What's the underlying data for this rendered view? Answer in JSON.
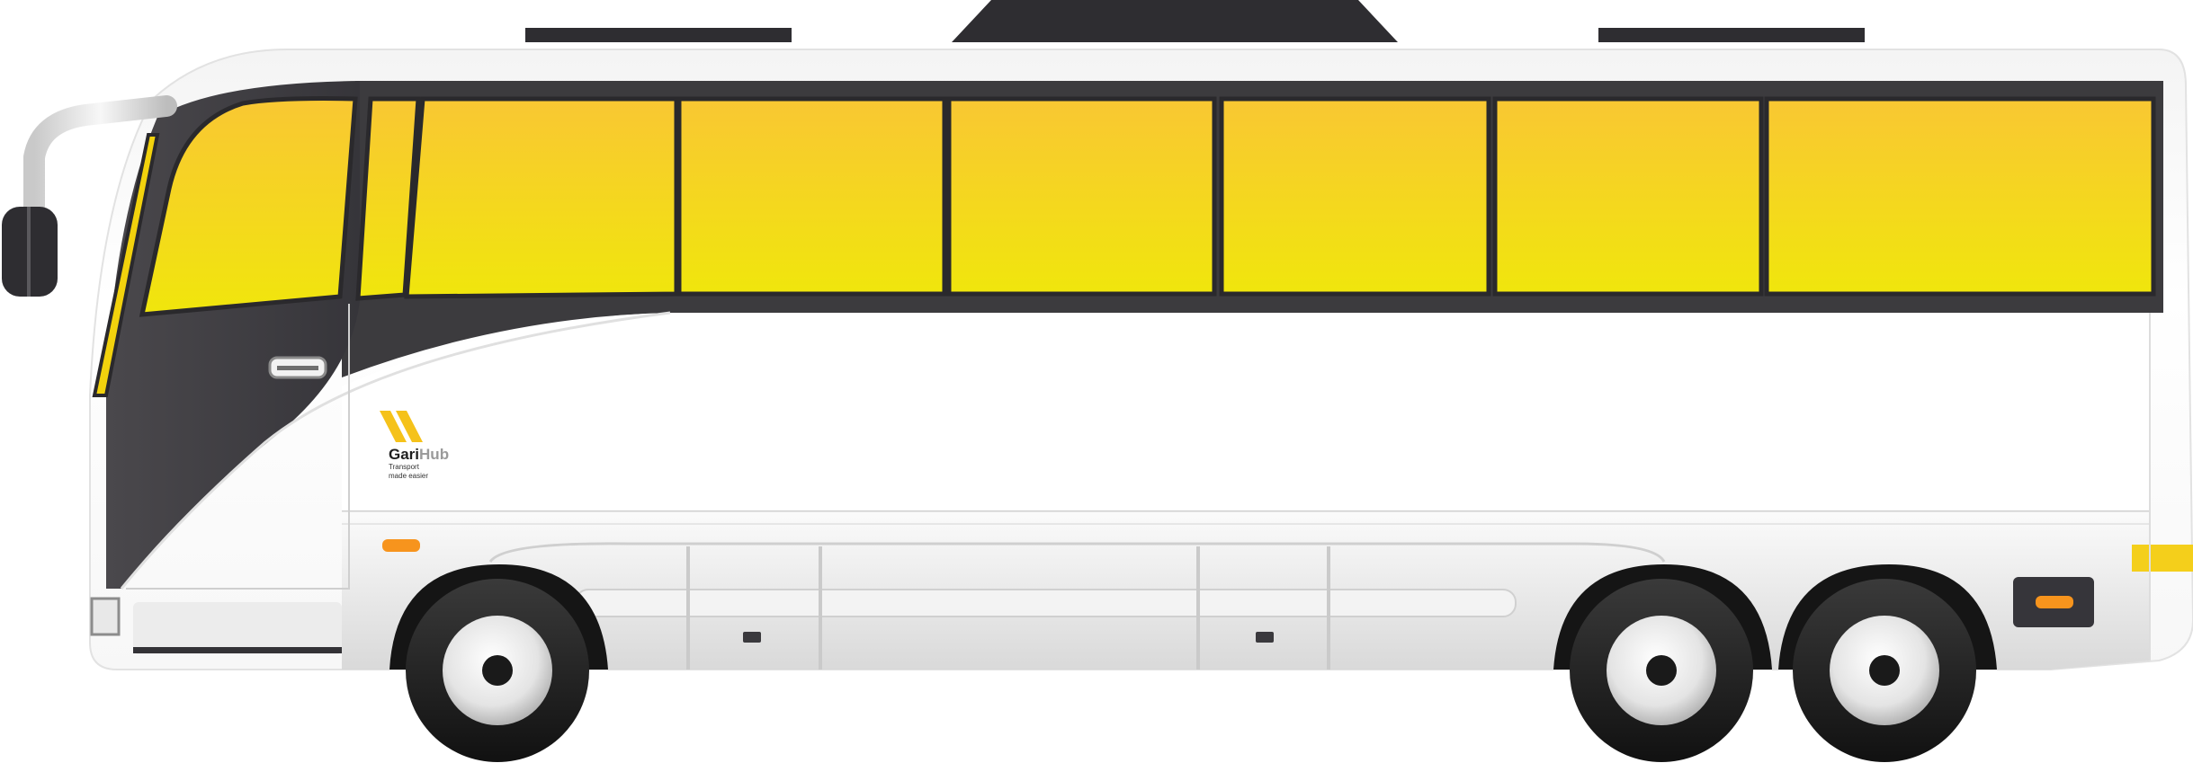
{
  "scene": {
    "title": "Intercity coach bus side view"
  },
  "branding": {
    "name_part1": "Gari",
    "name_part2": "Hub",
    "tagline_line1": "Transport",
    "tagline_line2": "made easier"
  },
  "colors": {
    "window_yellow_top": "#F9C733",
    "window_yellow_bottom": "#F0E60C",
    "body_white": "#FFFFFF",
    "trim_dark": "#3C3B3E",
    "frame_dark": "#2A292C",
    "logo_yellow": "#F5C21A",
    "indicator_orange": "#F7941D",
    "tyre_black": "#1E1E1E"
  }
}
